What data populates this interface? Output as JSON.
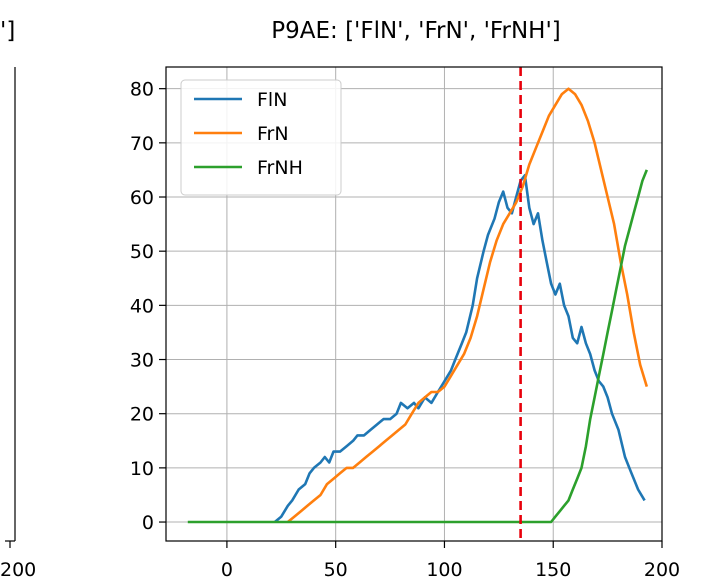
{
  "chart_data": {
    "type": "line",
    "title": "P9AE: ['FlN', 'FrN', 'FrNH']",
    "left_panel_partial": {
      "title_fragment": "']",
      "x_tick_fragment": "200"
    },
    "xlabel": "",
    "ylabel": "",
    "xlim": [
      -28,
      200
    ],
    "ylim": [
      -3.5,
      84
    ],
    "x_ticks": [
      0,
      50,
      100,
      150,
      200
    ],
    "y_ticks": [
      0,
      10,
      20,
      30,
      40,
      50,
      60,
      70,
      80
    ],
    "grid": true,
    "legend_position": "top-left",
    "vline": {
      "x": 135,
      "color": "#e8000b",
      "style": "dashed"
    },
    "series": [
      {
        "name": "FlN",
        "color": "#1f77b4",
        "x": [
          22,
          25,
          28,
          30,
          33,
          36,
          38,
          40,
          43,
          45,
          47,
          49,
          52,
          55,
          58,
          60,
          63,
          66,
          69,
          72,
          75,
          78,
          80,
          83,
          86,
          88,
          91,
          94,
          97,
          100,
          103,
          105,
          108,
          110,
          113,
          115,
          118,
          120,
          123,
          125,
          127,
          129,
          131,
          133,
          135,
          137,
          139,
          141,
          143,
          145,
          147,
          149,
          151,
          153,
          155,
          157,
          159,
          161,
          163,
          165,
          167,
          169,
          171,
          173,
          175,
          177,
          180,
          183,
          186,
          189,
          192
        ],
        "y": [
          0,
          1,
          3,
          4,
          6,
          7,
          9,
          10,
          11,
          12,
          11,
          13,
          13,
          14,
          15,
          16,
          16,
          17,
          18,
          19,
          19,
          20,
          22,
          21,
          22,
          21,
          23,
          22,
          24,
          26,
          28,
          30,
          33,
          35,
          40,
          45,
          50,
          53,
          56,
          59,
          61,
          58,
          57,
          60,
          63,
          64,
          58,
          55,
          57,
          52,
          48,
          44,
          42,
          44,
          40,
          38,
          34,
          33,
          36,
          33,
          31,
          28,
          26,
          25,
          23,
          20,
          17,
          12,
          9,
          6,
          4
        ]
      },
      {
        "name": "FrN",
        "color": "#ff7f0e",
        "x": [
          28,
          31,
          34,
          37,
          40,
          43,
          46,
          49,
          52,
          55,
          58,
          61,
          64,
          67,
          70,
          73,
          76,
          79,
          82,
          85,
          88,
          91,
          94,
          97,
          100,
          103,
          106,
          109,
          112,
          115,
          118,
          121,
          124,
          127,
          130,
          133,
          136,
          139,
          142,
          145,
          148,
          151,
          154,
          157,
          160,
          163,
          166,
          169,
          172,
          175,
          178,
          181,
          184,
          187,
          190,
          193
        ],
        "y": [
          0,
          1,
          2,
          3,
          4,
          5,
          7,
          8,
          9,
          10,
          10,
          11,
          12,
          13,
          14,
          15,
          16,
          17,
          18,
          20,
          22,
          23,
          24,
          24,
          25,
          27,
          29,
          31,
          34,
          38,
          43,
          48,
          52,
          55,
          57,
          59,
          62,
          66,
          69,
          72,
          75,
          77,
          79,
          80,
          79,
          77,
          74,
          70,
          65,
          60,
          55,
          48,
          42,
          35,
          29,
          25
        ]
      },
      {
        "name": "FrNH",
        "color": "#2ca02c",
        "x": [
          -18,
          0,
          50,
          100,
          140,
          149,
          151,
          153,
          155,
          157,
          159,
          161,
          163,
          165,
          167,
          169,
          171,
          173,
          175,
          177,
          179,
          181,
          183,
          185,
          187,
          189,
          191,
          193
        ],
        "y": [
          0,
          0,
          0,
          0,
          0,
          0,
          1,
          2,
          3,
          4,
          6,
          8,
          10,
          14,
          19,
          23,
          27,
          31,
          35,
          39,
          43,
          47,
          51,
          54,
          57,
          60,
          63,
          65
        ]
      }
    ]
  }
}
